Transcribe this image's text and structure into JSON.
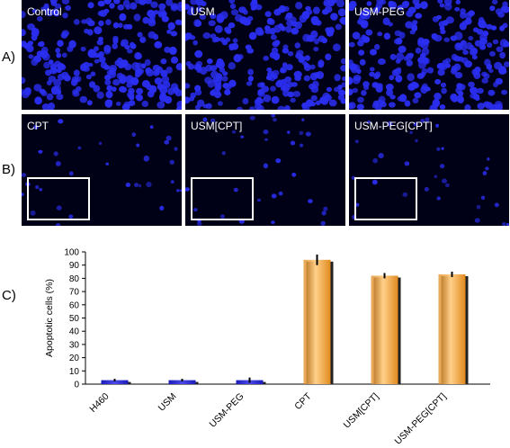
{
  "figure": {
    "row_labels": {
      "a": "A)",
      "b": "B)",
      "c": "C)"
    },
    "row_a": [
      "Control",
      "USM",
      "USM-PEG"
    ],
    "row_b": [
      "CPT",
      "USM[CPT]",
      "USM-PEG[CPT]"
    ]
  },
  "colors": {
    "nuclei": "#2a2ef0",
    "background": "#000016",
    "bar_blue": "#1a1ab8",
    "bar_orange": "#e08a1e"
  },
  "chart_data": {
    "type": "bar",
    "ylabel": "Apoptotic cells (%)",
    "xlabel": "",
    "title": "",
    "ylim": [
      0,
      100
    ],
    "yticks": [
      0,
      10,
      20,
      30,
      40,
      50,
      60,
      70,
      80,
      90,
      100
    ],
    "categories": [
      "H460",
      "USM",
      "USM-PEG",
      "CPT",
      "USM[CPT]",
      "USM-PEG[CPT]"
    ],
    "values": [
      3,
      3,
      3,
      94,
      82,
      83
    ],
    "errors": [
      1,
      1,
      2,
      4,
      2,
      2
    ],
    "bar_colors": [
      "#1a1ab8",
      "#1a1ab8",
      "#1a1ab8",
      "#e08a1e",
      "#e08a1e",
      "#e08a1e"
    ],
    "grid": false,
    "legend": "none"
  }
}
